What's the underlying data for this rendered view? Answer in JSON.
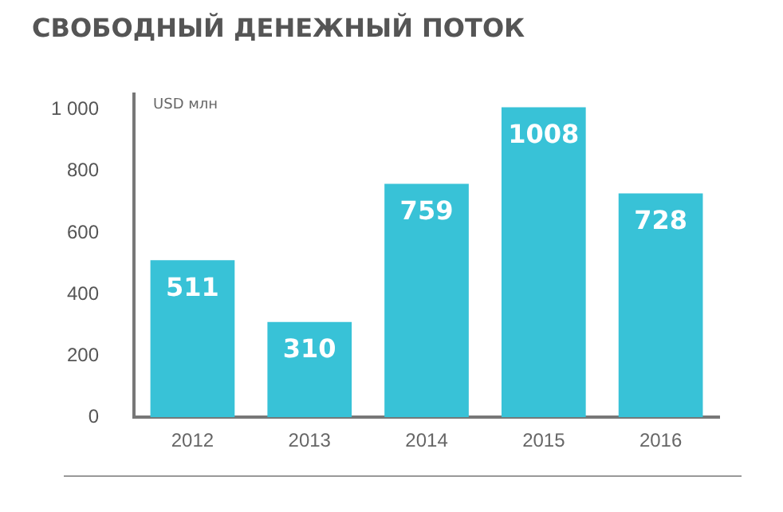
{
  "chart_data": {
    "type": "bar",
    "title": "СВОБОДНЫЙ ДЕНЕЖНЫЙ ПОТОК",
    "ylabel": "USD млн",
    "categories": [
      "2012",
      "2013",
      "2014",
      "2015",
      "2016"
    ],
    "values": [
      511,
      310,
      759,
      1008,
      728
    ],
    "color": "#38c2d7",
    "ylim": [
      0,
      1050
    ],
    "yticks": [
      0,
      200,
      400,
      600,
      800,
      {
        "value": 1000,
        "label": "1 000"
      }
    ],
    "grid": false,
    "data_labels": true
  }
}
